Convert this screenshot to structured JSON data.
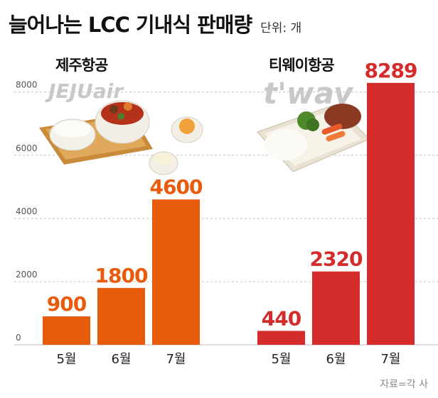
{
  "title": "늘어나는 LCC 기내식 판매량",
  "unit": "단위: 개",
  "source": "자료=각 사",
  "panels": [
    {
      "airline": "제주항공",
      "logo_text": "JEJUair",
      "color": "#E85B0C",
      "label_color": "#E85B0C"
    },
    {
      "airline": "티웨이항공",
      "logo_text": "t'way",
      "color": "#D42B2B",
      "label_color": "#D42B2B"
    }
  ],
  "chart_data": {
    "type": "bar",
    "categories": [
      "5월",
      "6월",
      "7월"
    ],
    "series": [
      {
        "name": "제주항공",
        "values": [
          900,
          1800,
          4600
        ]
      },
      {
        "name": "티웨이항공",
        "values": [
          440,
          2320,
          8289
        ]
      }
    ],
    "ylim": [
      0,
      8600
    ],
    "yticks": [
      0,
      2000,
      4000,
      6000,
      8000
    ],
    "ytick_labels": [
      "0",
      "2000",
      "4000",
      "6000",
      "8000"
    ],
    "grid": true
  }
}
